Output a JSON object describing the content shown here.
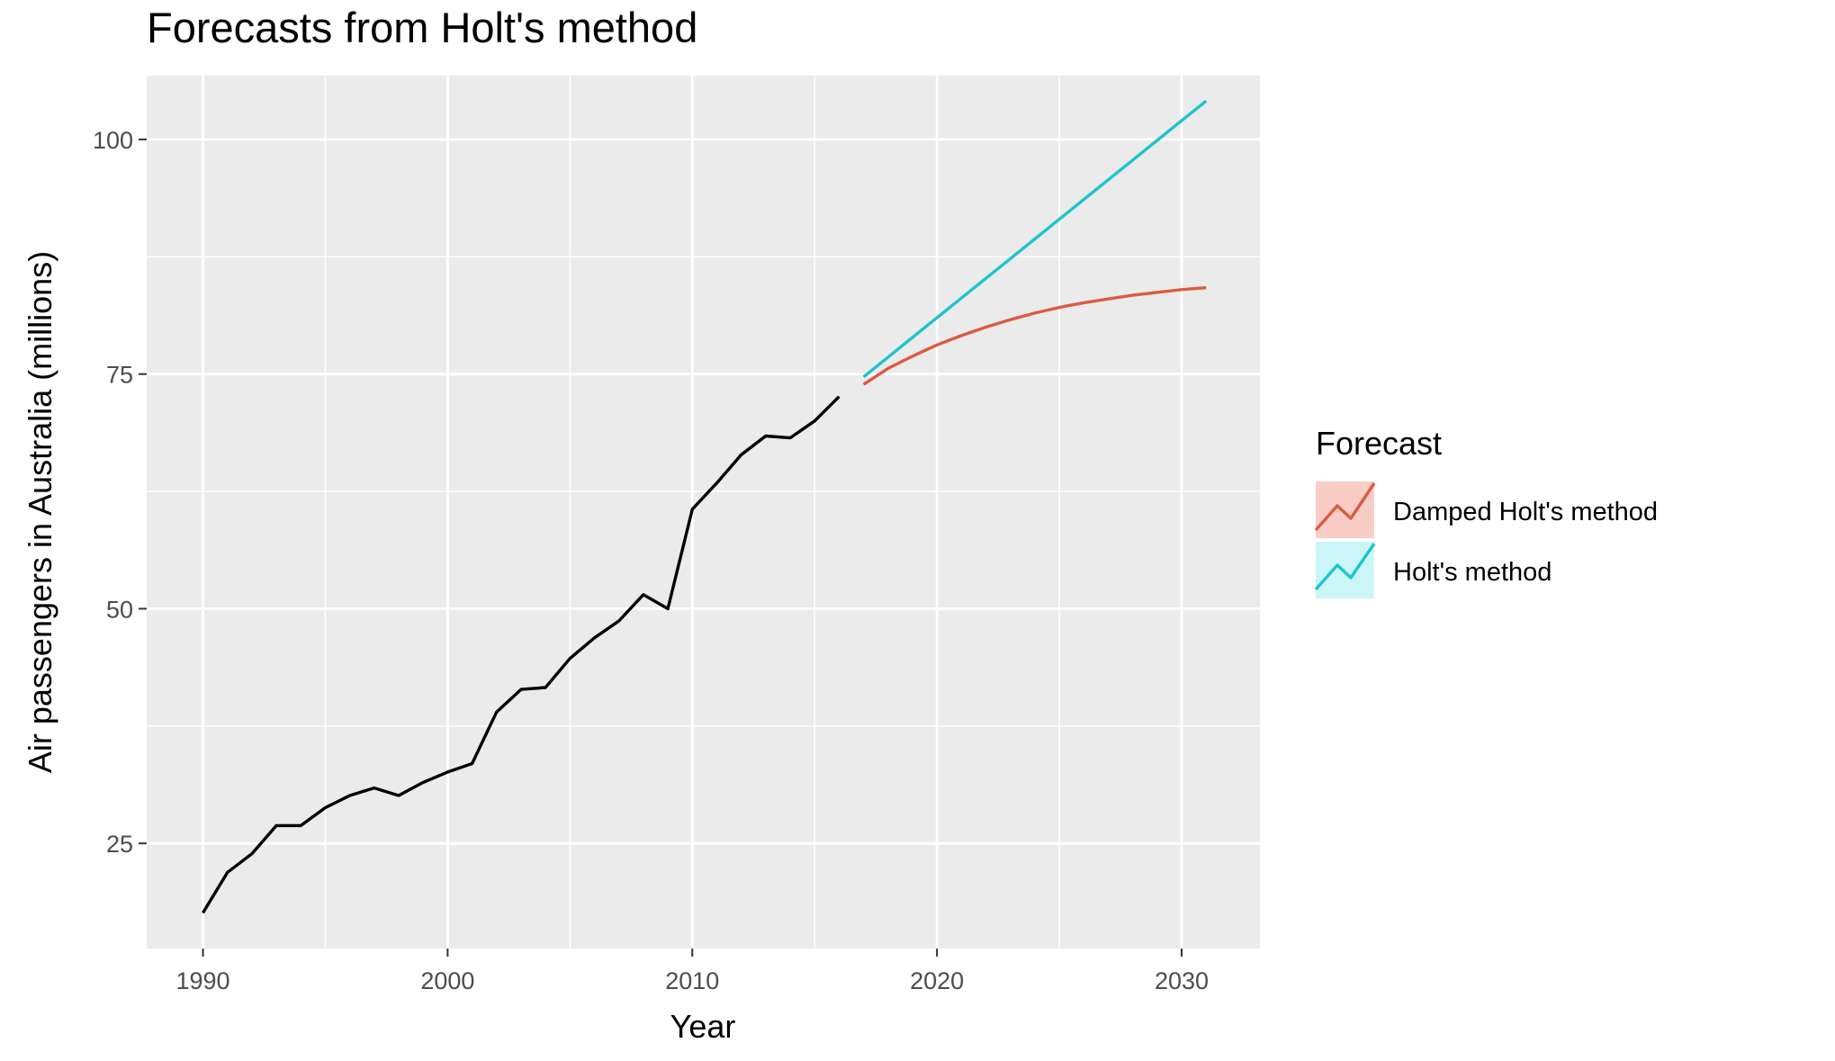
{
  "chart_data": {
    "type": "line",
    "title": "Forecasts from Holt's method",
    "xlabel": "Year",
    "ylabel": "Air passengers in Australia (millions)",
    "xlim": [
      1987.7,
      2033.2
    ],
    "ylim": [
      13.8,
      106.8
    ],
    "x_ticks": [
      1990,
      2000,
      2010,
      2020,
      2030
    ],
    "y_ticks": [
      25,
      50,
      75,
      100
    ],
    "grid": true,
    "legend": {
      "title": "Forecast",
      "position": "right"
    },
    "series": [
      {
        "color": "#000000",
        "x": [
          1990,
          1991,
          1992,
          1993,
          1994,
          1995,
          1996,
          1997,
          1998,
          1999,
          2000,
          2001,
          2002,
          2003,
          2004,
          2005,
          2006,
          2007,
          2008,
          2009,
          2010,
          2011,
          2012,
          2013,
          2014,
          2015,
          2016
        ],
        "values": [
          17.6,
          21.9,
          23.9,
          26.9,
          26.9,
          28.8,
          30.1,
          30.9,
          30.1,
          31.5,
          32.6,
          33.5,
          39.0,
          41.4,
          41.6,
          44.7,
          46.9,
          48.7,
          51.5,
          50.0,
          60.6,
          63.4,
          66.4,
          68.4,
          68.2,
          70.0,
          72.6
        ]
      },
      {
        "name": "Damped Holt's method",
        "color": "#DB5B43",
        "x": [
          2017,
          2018,
          2019,
          2020,
          2021,
          2022,
          2023,
          2024,
          2025,
          2026,
          2027,
          2028,
          2029,
          2030,
          2031
        ],
        "values": [
          73.9,
          75.6,
          76.9,
          78.1,
          79.1,
          80.0,
          80.8,
          81.5,
          82.1,
          82.6,
          83.0,
          83.4,
          83.7,
          84.0,
          84.2
        ]
      },
      {
        "name": "Holt's method",
        "color": "#1FC4CC",
        "x": [
          2017,
          2018,
          2019,
          2020,
          2021,
          2022,
          2023,
          2024,
          2025,
          2026,
          2027,
          2028,
          2029,
          2030,
          2031
        ],
        "values": [
          74.7,
          76.8,
          78.9,
          81.0,
          83.1,
          85.2,
          87.3,
          89.4,
          91.5,
          93.6,
          95.7,
          97.8,
          99.9,
          102.0,
          104.1
        ]
      }
    ]
  }
}
